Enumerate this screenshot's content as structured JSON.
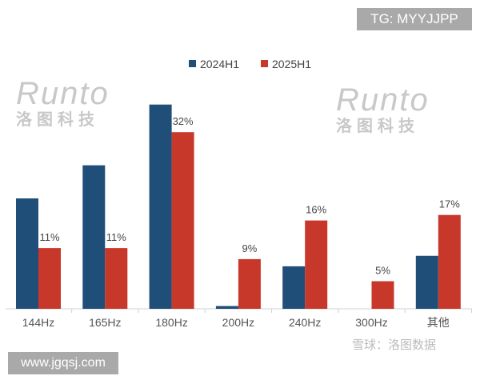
{
  "chart_data": {
    "type": "bar",
    "categories": [
      "144Hz",
      "165Hz",
      "180Hz",
      "200Hz",
      "240Hz",
      "300Hz",
      "其他"
    ],
    "series": [
      {
        "name": "2024H1",
        "color": "#1f4e79",
        "values": [
          20,
          26,
          37,
          0.5,
          7.7,
          0,
          9.6
        ]
      },
      {
        "name": "2025H1",
        "color": "#c8382a",
        "values": [
          11,
          11,
          32,
          9,
          16,
          5,
          17
        ],
        "labels": [
          "11%",
          "11%",
          "32%",
          "9%",
          "16%",
          "5%",
          "17%"
        ]
      }
    ],
    "ylim": [
      0,
      40
    ],
    "grid": false,
    "legend": "top-center"
  },
  "overlays": {
    "tg": "TG: MYYJJPP",
    "site": "www.jgqsj.com"
  },
  "watermarks": {
    "brand": "Runto",
    "brand_cn": "洛图科技",
    "xueqiu": "雪球：洛图数据"
  }
}
